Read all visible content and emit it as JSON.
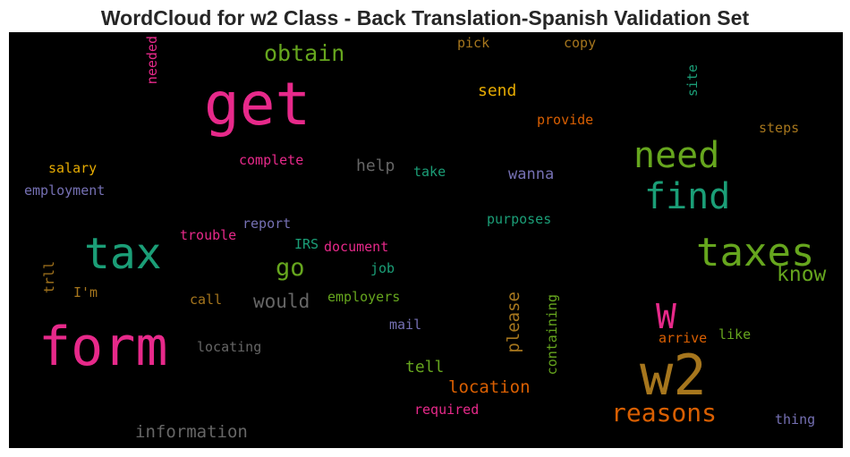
{
  "chart_data": {
    "type": "wordcloud",
    "title": "WordCloud for w2 Class - Back Translation-Spanish Validation Set",
    "background": "#000000",
    "colormap": [
      "#e7298a",
      "#1b9e77",
      "#66a61e",
      "#e6ab02",
      "#a6761d",
      "#7570b3",
      "#666666",
      "#d95f02"
    ],
    "words": [
      {
        "text": "get",
        "weight": 1.0,
        "color": "#e7298a",
        "orientation": "horizontal"
      },
      {
        "text": "form",
        "weight": 0.92,
        "color": "#e7298a",
        "orientation": "horizontal"
      },
      {
        "text": "w2",
        "weight": 0.9,
        "color": "#a6761d",
        "orientation": "horizontal"
      },
      {
        "text": "tax",
        "weight": 0.72,
        "color": "#1b9e77",
        "orientation": "horizontal"
      },
      {
        "text": "taxes",
        "weight": 0.68,
        "color": "#66a61e",
        "orientation": "horizontal"
      },
      {
        "text": "need",
        "weight": 0.6,
        "color": "#66a61e",
        "orientation": "horizontal"
      },
      {
        "text": "find",
        "weight": 0.58,
        "color": "#1b9e77",
        "orientation": "horizontal"
      },
      {
        "text": "W",
        "weight": 0.52,
        "color": "#e7298a",
        "orientation": "horizontal"
      },
      {
        "text": "reasons",
        "weight": 0.42,
        "color": "#d95f02",
        "orientation": "horizontal"
      },
      {
        "text": "obtain",
        "weight": 0.38,
        "color": "#66a61e",
        "orientation": "horizontal"
      },
      {
        "text": "go",
        "weight": 0.38,
        "color": "#66a61e",
        "orientation": "horizontal"
      },
      {
        "text": "know",
        "weight": 0.36,
        "color": "#66a61e",
        "orientation": "horizontal"
      },
      {
        "text": "would",
        "weight": 0.34,
        "color": "#666666",
        "orientation": "horizontal"
      },
      {
        "text": "location",
        "weight": 0.33,
        "color": "#d95f02",
        "orientation": "horizontal"
      },
      {
        "text": "information",
        "weight": 0.31,
        "color": "#666666",
        "orientation": "horizontal"
      },
      {
        "text": "please",
        "weight": 0.31,
        "color": "#a6761d",
        "orientation": "vertical"
      },
      {
        "text": "help",
        "weight": 0.3,
        "color": "#666666",
        "orientation": "horizontal"
      },
      {
        "text": "send",
        "weight": 0.3,
        "color": "#e6ab02",
        "orientation": "horizontal"
      },
      {
        "text": "tell",
        "weight": 0.3,
        "color": "#66a61e",
        "orientation": "horizontal"
      },
      {
        "text": "wanna",
        "weight": 0.28,
        "color": "#7570b3",
        "orientation": "horizontal"
      },
      {
        "text": "containing",
        "weight": 0.24,
        "color": "#66a61e",
        "orientation": "vertical"
      },
      {
        "text": "complete",
        "weight": 0.24,
        "color": "#e7298a",
        "orientation": "horizontal"
      },
      {
        "text": "locating",
        "weight": 0.24,
        "color": "#666666",
        "orientation": "horizontal"
      },
      {
        "text": "employers",
        "weight": 0.24,
        "color": "#66a61e",
        "orientation": "horizontal"
      },
      {
        "text": "document",
        "weight": 0.24,
        "color": "#e7298a",
        "orientation": "horizontal"
      },
      {
        "text": "provide",
        "weight": 0.24,
        "color": "#d95f02",
        "orientation": "horizontal"
      },
      {
        "text": "required",
        "weight": 0.24,
        "color": "#e7298a",
        "orientation": "horizontal"
      },
      {
        "text": "thing",
        "weight": 0.24,
        "color": "#7570b3",
        "orientation": "horizontal"
      },
      {
        "text": "arrive",
        "weight": 0.24,
        "color": "#d95f02",
        "orientation": "horizontal"
      },
      {
        "text": "like",
        "weight": 0.24,
        "color": "#66a61e",
        "orientation": "horizontal"
      },
      {
        "text": "steps",
        "weight": 0.24,
        "color": "#a6761d",
        "orientation": "horizontal"
      },
      {
        "text": "salary",
        "weight": 0.24,
        "color": "#e6ab02",
        "orientation": "horizontal"
      },
      {
        "text": "employment",
        "weight": 0.24,
        "color": "#7570b3",
        "orientation": "horizontal"
      },
      {
        "text": "trouble",
        "weight": 0.24,
        "color": "#e7298a",
        "orientation": "horizontal"
      },
      {
        "text": "report",
        "weight": 0.24,
        "color": "#7570b3",
        "orientation": "horizontal"
      },
      {
        "text": "purposes",
        "weight": 0.24,
        "color": "#1b9e77",
        "orientation": "horizontal"
      },
      {
        "text": "take",
        "weight": 0.24,
        "color": "#1b9e77",
        "orientation": "horizontal"
      },
      {
        "text": "call",
        "weight": 0.24,
        "color": "#a6761d",
        "orientation": "horizontal"
      },
      {
        "text": "mail",
        "weight": 0.24,
        "color": "#7570b3",
        "orientation": "horizontal"
      },
      {
        "text": "I'm",
        "weight": 0.24,
        "color": "#a6761d",
        "orientation": "horizontal"
      },
      {
        "text": "job",
        "weight": 0.24,
        "color": "#1b9e77",
        "orientation": "horizontal"
      },
      {
        "text": "IRS",
        "weight": 0.24,
        "color": "#1b9e77",
        "orientation": "horizontal"
      },
      {
        "text": "pick",
        "weight": 0.24,
        "color": "#a6761d",
        "orientation": "horizontal"
      },
      {
        "text": "copy",
        "weight": 0.24,
        "color": "#a6761d",
        "orientation": "horizontal"
      },
      {
        "text": "needed",
        "weight": 0.24,
        "color": "#e7298a",
        "orientation": "vertical"
      },
      {
        "text": "site",
        "weight": 0.24,
        "color": "#1b9e77",
        "orientation": "vertical"
      },
      {
        "text": "trll",
        "weight": 0.24,
        "color": "#a6761d",
        "orientation": "vertical"
      }
    ]
  }
}
